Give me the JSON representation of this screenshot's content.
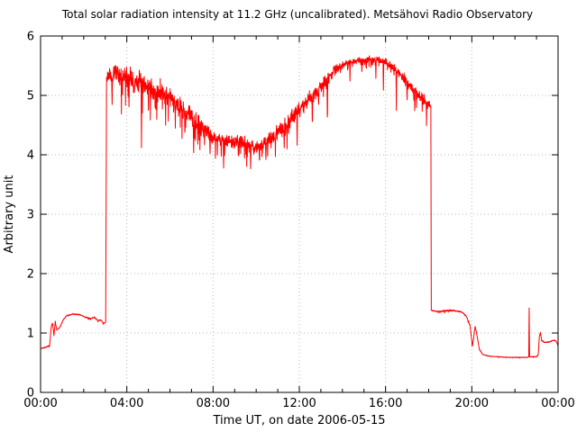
{
  "colors": {
    "background": "#ffffff",
    "line": "#ff0000",
    "grid": "#b8b8b8",
    "frame": "#000000",
    "text": "#000000"
  },
  "chart_data": {
    "type": "line",
    "title": "Total solar radiation intensity at 11.2 GHz (uncalibrated). Metsähovi Radio Observatory",
    "xlabel": "Time UT, on date 2006-05-15",
    "ylabel": "Arbitrary unit",
    "x_unit": "hours UT",
    "xlim": [
      0,
      24
    ],
    "ylim": [
      0,
      6
    ],
    "grid": "dotted gridlines at major ticks",
    "legend": "none",
    "x_major_ticks": [
      {
        "t": 0,
        "label": "00:00"
      },
      {
        "t": 4,
        "label": "04:00"
      },
      {
        "t": 8,
        "label": "08:00"
      },
      {
        "t": 12,
        "label": "12:00"
      },
      {
        "t": 16,
        "label": "16:00"
      },
      {
        "t": 20,
        "label": "20:00"
      },
      {
        "t": 24,
        "label": "00:00"
      }
    ],
    "x_minor_tick_interval_hours": 1,
    "y_ticks": [
      {
        "v": 0,
        "label": "0"
      },
      {
        "v": 1,
        "label": "1"
      },
      {
        "v": 2,
        "label": "2"
      },
      {
        "v": 3,
        "label": "3"
      },
      {
        "v": 4,
        "label": "4"
      },
      {
        "v": 5,
        "label": "5"
      },
      {
        "v": 6,
        "label": "6"
      }
    ],
    "features": {
      "pre_sunrise_level": 1.3,
      "sunrise_jump_time_ut": "03:03",
      "noon_minimum": 4.1,
      "afternoon_plateau": 5.6,
      "sunset_drop_time_ut": "18:06",
      "post_sunset_level": 1.36,
      "late_night_level": 0.59,
      "narrow_spike_time_ut": "22:40",
      "narrow_spike_value": 1.42
    },
    "series": [
      {
        "name": "solar radiation intensity (uncalibrated)",
        "color": "#ff0000",
        "baseline_t_v_noise": [
          [
            0.0,
            0.74,
            0.008
          ],
          [
            0.25,
            0.76,
            0.008
          ],
          [
            0.42,
            0.79,
            0.008
          ],
          [
            0.5,
            1.13,
            0.012
          ],
          [
            0.56,
            1.16,
            0.01
          ],
          [
            0.62,
            0.96,
            0.01
          ],
          [
            0.68,
            1.19,
            0.01
          ],
          [
            0.76,
            1.05,
            0.008
          ],
          [
            0.9,
            1.1,
            0.008
          ],
          [
            1.05,
            1.22,
            0.008
          ],
          [
            1.2,
            1.29,
            0.008
          ],
          [
            1.5,
            1.32,
            0.008
          ],
          [
            1.8,
            1.31,
            0.008
          ],
          [
            2.05,
            1.27,
            0.008
          ],
          [
            2.3,
            1.24,
            0.008
          ],
          [
            2.5,
            1.27,
            0.008
          ],
          [
            2.65,
            1.21,
            0.008
          ],
          [
            2.8,
            1.22,
            0.008
          ],
          [
            2.92,
            1.16,
            0.008
          ],
          [
            3.02,
            1.18,
            0.008
          ],
          [
            3.06,
            5.25,
            0.06
          ],
          [
            3.15,
            5.4,
            0.1
          ],
          [
            3.3,
            5.3,
            0.14
          ],
          [
            3.45,
            5.42,
            0.14
          ],
          [
            3.6,
            5.32,
            0.15
          ],
          [
            3.9,
            5.28,
            0.16
          ],
          [
            4.2,
            5.26,
            0.16
          ],
          [
            4.5,
            5.22,
            0.16
          ],
          [
            4.8,
            5.18,
            0.16
          ],
          [
            5.1,
            5.12,
            0.16
          ],
          [
            5.4,
            5.07,
            0.15
          ],
          [
            5.7,
            5.02,
            0.15
          ],
          [
            6.0,
            4.95,
            0.15
          ],
          [
            6.3,
            4.86,
            0.14
          ],
          [
            6.6,
            4.76,
            0.14
          ],
          [
            6.9,
            4.66,
            0.13
          ],
          [
            7.2,
            4.56,
            0.13
          ],
          [
            7.5,
            4.46,
            0.12
          ],
          [
            7.8,
            4.36,
            0.11
          ],
          [
            8.1,
            4.29,
            0.1
          ],
          [
            8.4,
            4.23,
            0.1
          ],
          [
            8.7,
            4.22,
            0.09
          ],
          [
            9.0,
            4.23,
            0.09
          ],
          [
            9.3,
            4.21,
            0.09
          ],
          [
            9.6,
            4.18,
            0.09
          ],
          [
            9.9,
            4.12,
            0.09
          ],
          [
            10.1,
            4.1,
            0.09
          ],
          [
            10.35,
            4.18,
            0.1
          ],
          [
            10.6,
            4.26,
            0.11
          ],
          [
            10.9,
            4.33,
            0.12
          ],
          [
            11.2,
            4.42,
            0.12
          ],
          [
            11.5,
            4.53,
            0.13
          ],
          [
            11.8,
            4.66,
            0.13
          ],
          [
            12.1,
            4.78,
            0.12
          ],
          [
            12.4,
            4.9,
            0.12
          ],
          [
            12.7,
            5.02,
            0.11
          ],
          [
            13.0,
            5.16,
            0.1
          ],
          [
            13.3,
            5.28,
            0.09
          ],
          [
            13.6,
            5.4,
            0.07
          ],
          [
            13.9,
            5.49,
            0.05
          ],
          [
            14.2,
            5.54,
            0.04
          ],
          [
            14.5,
            5.57,
            0.04
          ],
          [
            14.8,
            5.59,
            0.04
          ],
          [
            15.1,
            5.6,
            0.04
          ],
          [
            15.4,
            5.61,
            0.04
          ],
          [
            15.7,
            5.6,
            0.04
          ],
          [
            16.0,
            5.57,
            0.05
          ],
          [
            16.3,
            5.49,
            0.06
          ],
          [
            16.6,
            5.38,
            0.07
          ],
          [
            16.9,
            5.26,
            0.08
          ],
          [
            17.2,
            5.13,
            0.08
          ],
          [
            17.5,
            5.01,
            0.08
          ],
          [
            17.8,
            4.92,
            0.08
          ],
          [
            18.05,
            4.84,
            0.05
          ],
          [
            18.1,
            4.8,
            0.03
          ],
          [
            18.12,
            1.38,
            0.008
          ],
          [
            18.4,
            1.36,
            0.008
          ],
          [
            18.7,
            1.37,
            0.012
          ],
          [
            19.0,
            1.38,
            0.01
          ],
          [
            19.3,
            1.37,
            0.008
          ],
          [
            19.55,
            1.35,
            0.008
          ],
          [
            19.75,
            1.28,
            0.01
          ],
          [
            19.92,
            1.12,
            0.015
          ],
          [
            20.02,
            0.78,
            0.015
          ],
          [
            20.08,
            0.9,
            0.015
          ],
          [
            20.15,
            1.12,
            0.01
          ],
          [
            20.22,
            1.0,
            0.01
          ],
          [
            20.35,
            0.73,
            0.008
          ],
          [
            20.5,
            0.64,
            0.005
          ],
          [
            20.8,
            0.61,
            0.004
          ],
          [
            21.2,
            0.6,
            0.004
          ],
          [
            21.7,
            0.59,
            0.004
          ],
          [
            22.2,
            0.59,
            0.004
          ],
          [
            22.6,
            0.59,
            0.004
          ],
          [
            22.64,
            0.6,
            0.004
          ],
          [
            22.66,
            1.42,
            0.0
          ],
          [
            22.68,
            0.6,
            0.004
          ],
          [
            23.0,
            0.6,
            0.005
          ],
          [
            23.08,
            0.64,
            0.01
          ],
          [
            23.13,
            0.93,
            0.015
          ],
          [
            23.18,
            1.01,
            0.01
          ],
          [
            23.24,
            0.87,
            0.01
          ],
          [
            23.4,
            0.84,
            0.008
          ],
          [
            23.6,
            0.85,
            0.008
          ],
          [
            23.8,
            0.88,
            0.008
          ],
          [
            23.92,
            0.86,
            0.008
          ],
          [
            24.0,
            0.78,
            0.008
          ]
        ],
        "downward_spikes_t_depth": [
          [
            3.32,
            0.55
          ],
          [
            3.75,
            0.5
          ],
          [
            4.1,
            0.45
          ],
          [
            4.68,
            1.05
          ],
          [
            5.0,
            0.5
          ],
          [
            5.35,
            0.45
          ],
          [
            5.8,
            0.5
          ],
          [
            6.25,
            0.45
          ],
          [
            6.7,
            0.4
          ],
          [
            7.1,
            0.45
          ],
          [
            7.6,
            0.35
          ],
          [
            7.86,
            0.35
          ],
          [
            8.49,
            0.38
          ],
          [
            9.2,
            0.3
          ],
          [
            9.74,
            0.4
          ],
          [
            10.15,
            0.3
          ],
          [
            10.45,
            0.35
          ],
          [
            11.3,
            0.35
          ],
          [
            11.9,
            0.45
          ],
          [
            12.6,
            0.4
          ],
          [
            13.3,
            0.62
          ],
          [
            14.35,
            0.28
          ],
          [
            14.9,
            0.22
          ],
          [
            15.55,
            0.3
          ],
          [
            15.9,
            0.45
          ],
          [
            16.5,
            0.62
          ],
          [
            17.0,
            0.3
          ],
          [
            17.35,
            0.35
          ],
          [
            17.9,
            0.42
          ]
        ]
      }
    ]
  }
}
